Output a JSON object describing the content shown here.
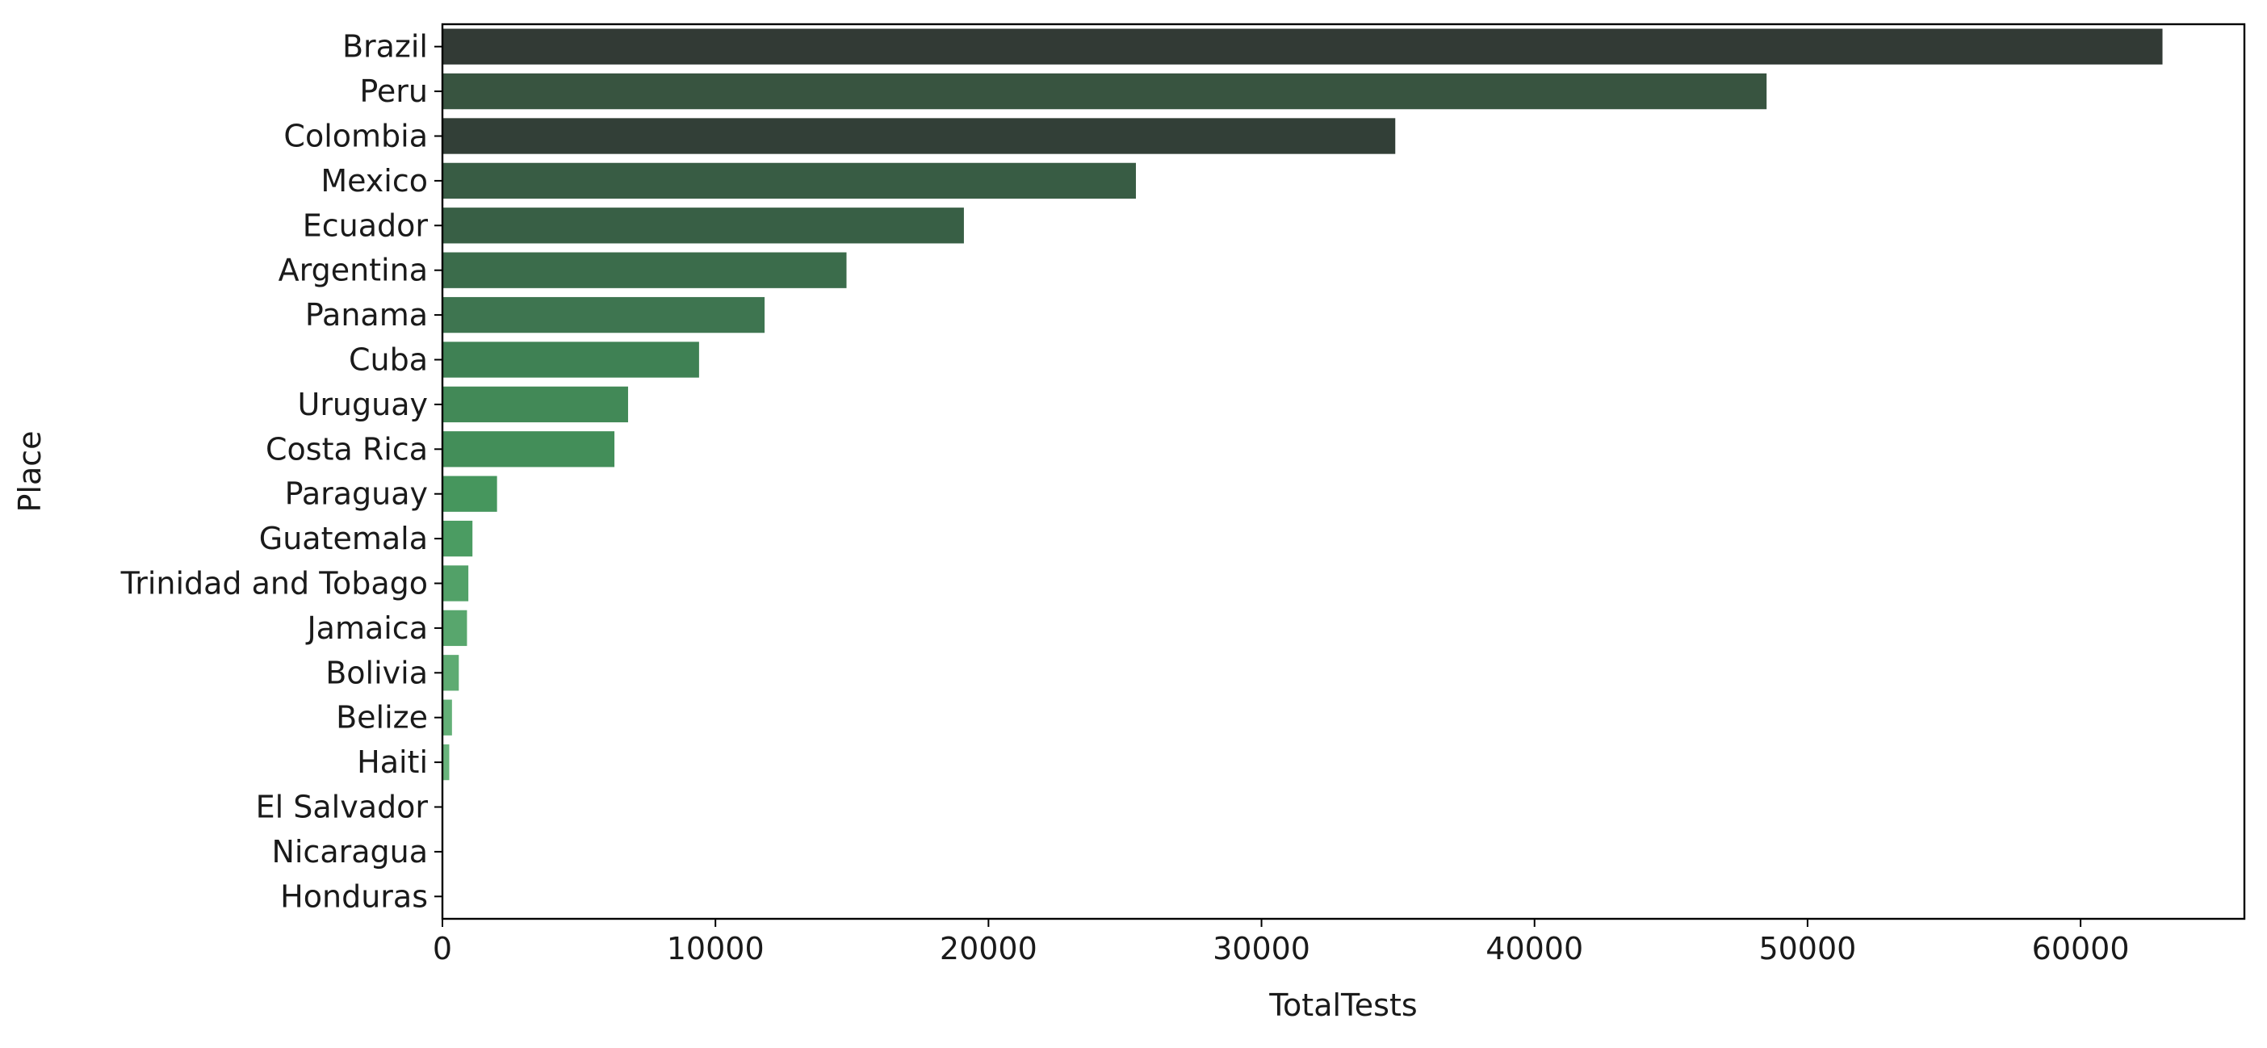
{
  "chart_data": {
    "type": "bar",
    "orientation": "horizontal",
    "title": "",
    "xlabel": "TotalTests",
    "ylabel": "Place",
    "xlim": [
      0,
      66000
    ],
    "xticks": [
      0,
      10000,
      20000,
      30000,
      40000,
      50000,
      60000
    ],
    "grid": false,
    "categories": [
      "Brazil",
      "Peru",
      "Colombia",
      "Mexico",
      "Ecuador",
      "Argentina",
      "Panama",
      "Cuba",
      "Uruguay",
      "Costa Rica",
      "Paraguay",
      "Guatemala",
      "Trinidad and Tobago",
      "Jamaica",
      "Bolivia",
      "Belize",
      "Haiti",
      "El Salvador",
      "Nicaragua",
      "Honduras"
    ],
    "values": [
      63000,
      48500,
      34900,
      25400,
      19100,
      14800,
      11800,
      9400,
      6800,
      6300,
      2000,
      1100,
      950,
      900,
      600,
      350,
      250,
      0,
      0,
      0
    ],
    "colors": [
      "#323a35",
      "#385440",
      "#323f37",
      "#385c44",
      "#385f45",
      "#3b6c4b",
      "#3e7550",
      "#3f8154",
      "#428957",
      "#438e59",
      "#46965d",
      "#4b9c62",
      "#52a168",
      "#58a66d",
      "#5eab72",
      "#63b077",
      "#69b47c",
      "#6fb981",
      "#76bd86",
      "#7cc28b"
    ]
  }
}
